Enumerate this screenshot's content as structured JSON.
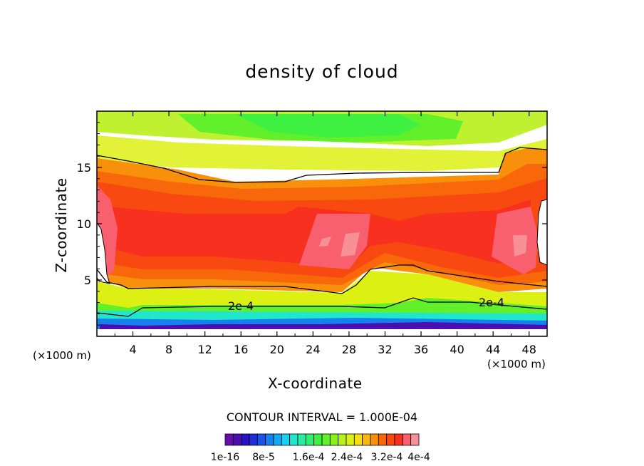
{
  "chart_data": {
    "type": "heatmap",
    "title": "density of cloud",
    "xlabel": "X-coordinate",
    "ylabel": "Z-coordinate",
    "x_unit_left": "(×1000 m)",
    "x_unit_right": "(×1000 m)",
    "xlim": [
      0,
      50
    ],
    "ylim": [
      0,
      20
    ],
    "x_ticks": [
      4,
      8,
      12,
      16,
      20,
      24,
      28,
      32,
      36,
      40,
      44,
      48
    ],
    "y_ticks": [
      5,
      10,
      15
    ],
    "contour_interval": "CONTOUR INTERVAL = 1.000E-04",
    "contour_labels": [
      "2e-4",
      "2e-4"
    ],
    "colorbar": {
      "n_levels": 24,
      "min": 1e-16,
      "max": 0.00048,
      "tick_labels": [
        "1e-16",
        "8e-5",
        "1.6e-4",
        "2.4e-4",
        "3.2e-4",
        "4e-4"
      ],
      "colors": [
        "#6a0dad",
        "#4b0fb0",
        "#2a10c8",
        "#1f2fd8",
        "#1a55e6",
        "#1680f0",
        "#14a8f4",
        "#1ad0ee",
        "#20e6cc",
        "#28eba0",
        "#30ef70",
        "#3ef040",
        "#62f02a",
        "#8cf020",
        "#b8f01a",
        "#dcf014",
        "#f4e010",
        "#f8b80e",
        "#f8900c",
        "#f8680a",
        "#f84a10",
        "#f83020",
        "#f86070",
        "#f89098"
      ]
    },
    "y_profile": [
      {
        "z": 0.5,
        "value": 1e-16
      },
      {
        "z": 1.0,
        "value": 5e-05
      },
      {
        "z": 1.5,
        "value": 0.00012
      },
      {
        "z": 2.2,
        "value": 0.00018
      },
      {
        "z": 3.0,
        "value": 0.00021
      },
      {
        "z": 4.0,
        "value": 0.00027
      },
      {
        "z": 5.0,
        "value": 0.00032
      },
      {
        "z": 7.0,
        "value": 0.00037
      },
      {
        "z": 10.0,
        "value": 0.00038
      },
      {
        "z": 12.0,
        "value": 0.00036
      },
      {
        "z": 13.5,
        "value": 0.00031
      },
      {
        "z": 14.5,
        "value": 0.00026
      },
      {
        "z": 16.0,
        "value": 0.00021
      },
      {
        "z": 17.5,
        "value": 0.00018
      },
      {
        "z": 19.0,
        "value": 0.00015
      },
      {
        "z": 20.0,
        "value": 0.00015
      }
    ]
  }
}
